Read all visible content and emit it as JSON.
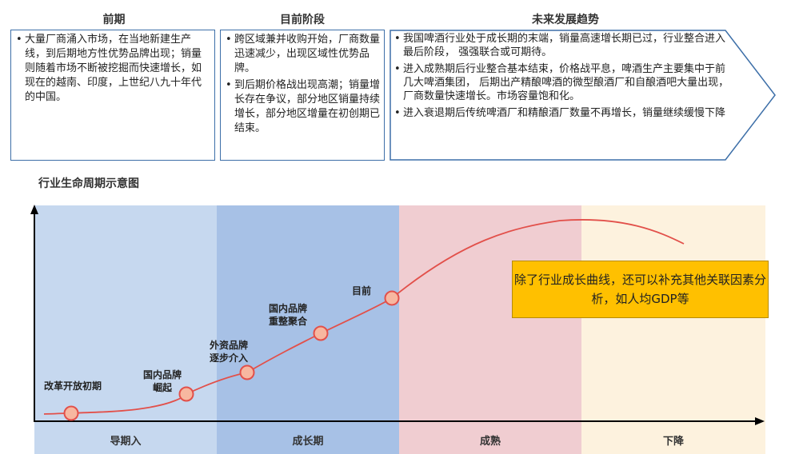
{
  "top": {
    "columns": [
      {
        "title": "前期",
        "bullets": [
          "大量厂商涌入市场，在当地新建生产线，到后期地方性优势品牌出现；销量则随着市场不断被挖掘而快速增长，如现在的越南、印度，上世纪八九十年代的中国。"
        ]
      },
      {
        "title": "目前阶段",
        "bullets": [
          "跨区域兼并收购开始，厂商数量迅速减少，出现区域性优势品牌。",
          "到后期价格战出现高潮；销量增长存在争议，部分地区销量持续增长，部分地区增量在初创期已结束。"
        ]
      },
      {
        "title": "未来发展趋势",
        "bullets": [
          "我国啤酒行业处于成长期的末端，销量高速增长期已过，行业整合进入最后阶段， 强强联合或可期待。",
          "进入成熟期后行业整合基本结束，价格战平息，啤酒生产主要集中于前几大啤酒集团， 后期出产精酿啤酒的微型酿酒厂和自酿酒吧大量出现，厂商数量快速增长。市场容量饱和化。",
          "进入衰退期后传统啤酒厂和精酿酒厂数量不再增长，销量继续缓慢下降"
        ]
      }
    ]
  },
  "chart_heading": "行业生命周期示意图",
  "phases": [
    {
      "label": "导期入",
      "color": "#c6d8ef"
    },
    {
      "label": "成长期",
      "color": "#a7c1e6"
    },
    {
      "label": "成熟",
      "color": "#f0cdd1"
    },
    {
      "label": "下降",
      "color": "#fdf2de"
    }
  ],
  "milestones": [
    {
      "label": "改革开放初期"
    },
    {
      "label": "国内品牌\n崛起"
    },
    {
      "label": "外资品牌\n逐步介入"
    },
    {
      "label": "国内品牌\n重整聚合"
    },
    {
      "label": "目前"
    }
  ],
  "callout": "除了行业成长曲线，还可以补充其他关联因素分析，如人均GDP等",
  "colors": {
    "box_border": "#3d6fa8",
    "curve": "#e2504a",
    "marker_fill": "#f7b7a0",
    "callout": "#ffc000"
  }
}
